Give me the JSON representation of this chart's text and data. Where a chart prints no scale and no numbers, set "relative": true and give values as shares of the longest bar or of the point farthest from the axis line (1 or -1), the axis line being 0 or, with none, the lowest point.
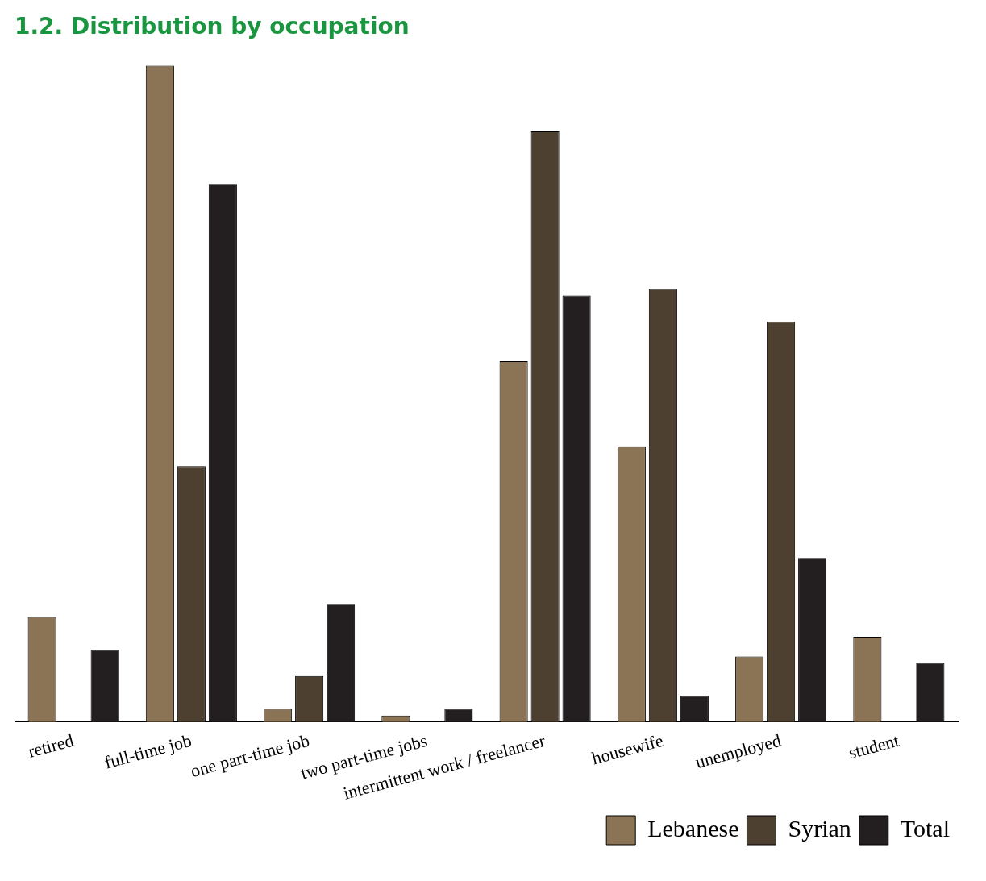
{
  "chart_data": {
    "type": "bar",
    "title": "1.2. Distribution by occupation",
    "relative": true,
    "categories": [
      "retired",
      "full-time job",
      "one part-time job",
      "two part-time jobs",
      "intermittent work / freelancer",
      "housewife",
      "unemployed",
      "student"
    ],
    "series": [
      {
        "name": "Lebanese",
        "color": "#8b7355",
        "values": [
          0.16,
          1,
          0.02,
          0.01,
          0.55,
          0.42,
          0.1,
          0.13
        ]
      },
      {
        "name": "Syrian",
        "color": "#4d4030",
        "values": [
          0,
          0.39,
          0.07,
          0,
          0.9,
          0.66,
          0.61,
          0
        ]
      },
      {
        "name": "Total",
        "color": "#231f20",
        "values": [
          0.11,
          0.82,
          0.18,
          0.02,
          0.65,
          0.04,
          0.25,
          0.09
        ]
      }
    ],
    "grid": false,
    "legend": "bottom right"
  }
}
